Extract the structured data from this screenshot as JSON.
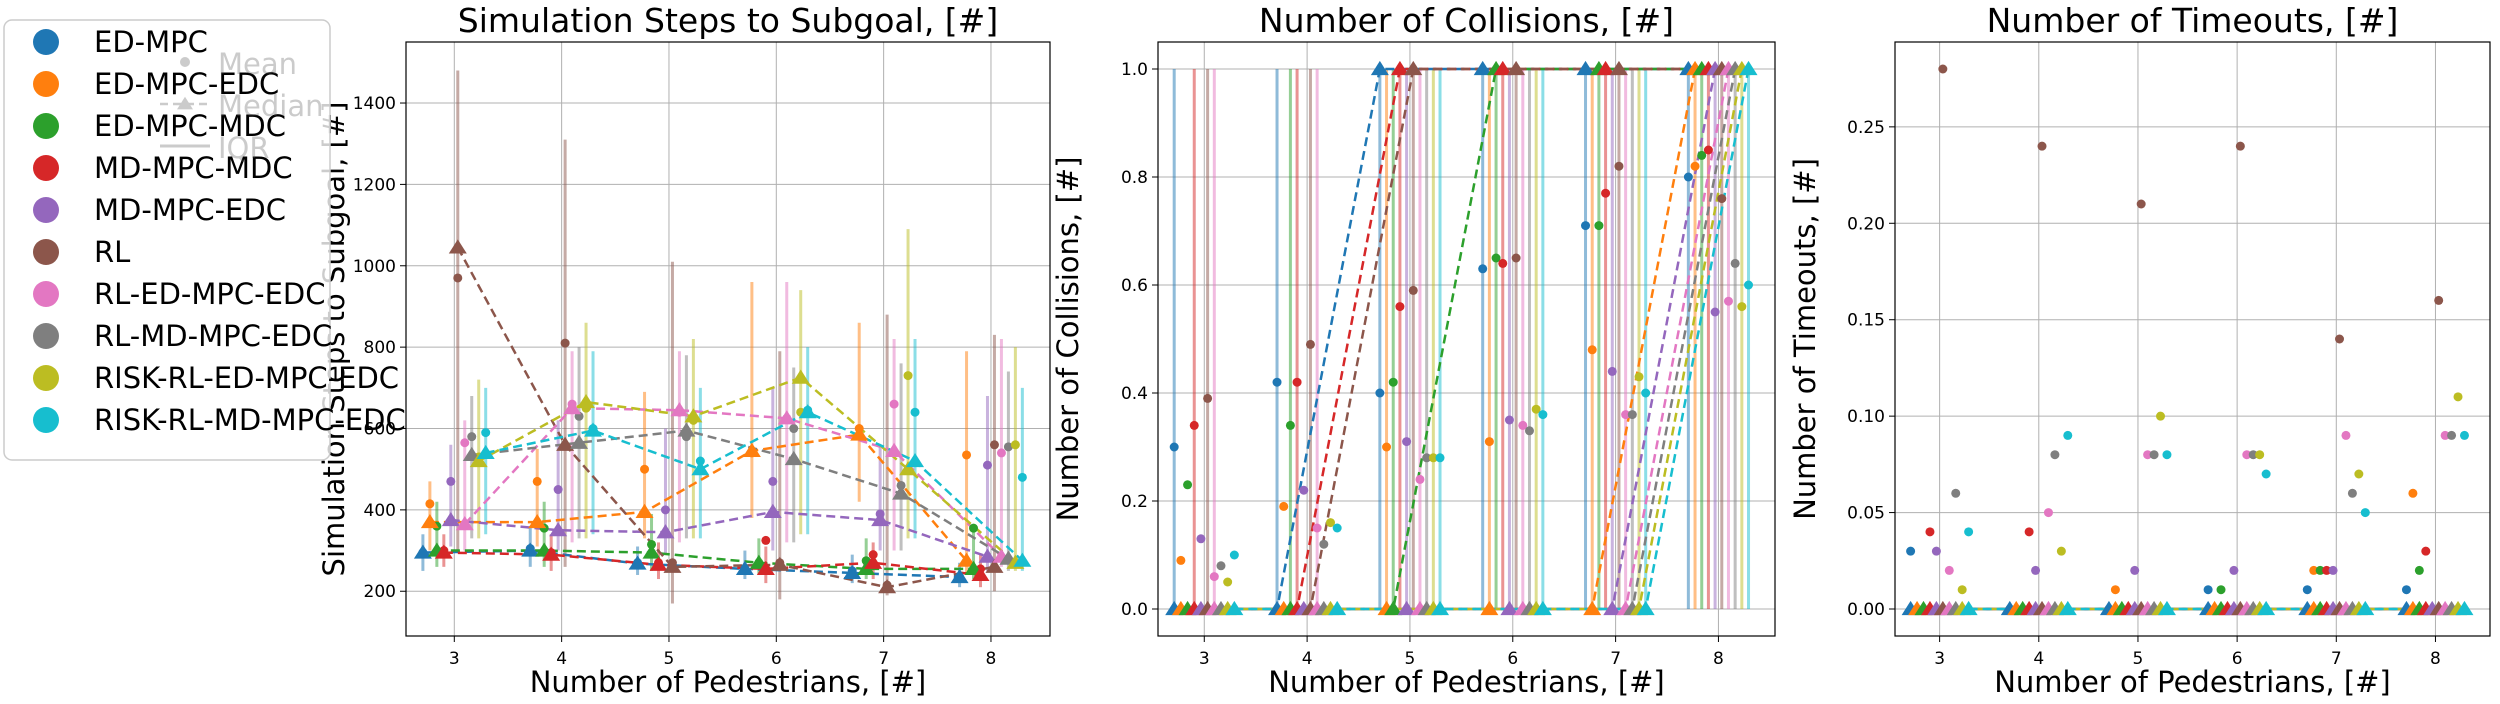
{
  "colors": {
    "ED-MPC": "#1f77b4",
    "ED-MPC-EDC": "#ff7f0e",
    "ED-MPC-MDC": "#2ca02c",
    "MD-MPC-MDC": "#d62728",
    "MD-MPC-EDC": "#9467bd",
    "RL": "#8c564b",
    "RL-ED-MPC-EDC": "#e377c2",
    "RL-MD-MPC-EDC": "#7f7f7f",
    "RISK-RL-ED-MPC-EDC": "#bcbd22",
    "RISK-RL-MD-MPC-EDC": "#17becf"
  },
  "legend": {
    "placement": "left",
    "methods": [
      "ED-MPC",
      "ED-MPC-EDC",
      "ED-MPC-MDC",
      "MD-MPC-MDC",
      "MD-MPC-EDC",
      "RL",
      "RL-ED-MPC-EDC",
      "RL-MD-MPC-EDC",
      "RISK-RL-ED-MPC-EDC",
      "RISK-RL-MD-MPC-EDC"
    ],
    "stats": [
      "Mean",
      "Median",
      "IQR"
    ]
  },
  "chart_data": [
    {
      "type": "scatter",
      "title": "Simulation Steps to Subgoal, [#]",
      "xlabel": "Number of Pedestrians, [#]",
      "ylabel": "Simulation Steps to Subgoal, [#]",
      "x": [
        3,
        4,
        5,
        6,
        7,
        8
      ],
      "xlim": [
        2.55,
        8.55
      ],
      "ylim": [
        90,
        1550
      ],
      "xticks": [
        3,
        4,
        5,
        6,
        7,
        8
      ],
      "yticks": [
        200,
        400,
        600,
        800,
        1000,
        1200,
        1400
      ],
      "grid": true,
      "series": [
        {
          "name": "ED-MPC",
          "mean": [
            295,
            305,
            270,
            255,
            250,
            235
          ],
          "median": [
            295,
            300,
            268,
            255,
            245,
            235
          ],
          "iqr_low": [
            250,
            260,
            240,
            230,
            220,
            210
          ],
          "iqr_high": [
            340,
            360,
            310,
            300,
            290,
            270
          ]
        },
        {
          "name": "ED-MPC-EDC",
          "mean": [
            415,
            470,
            500,
            540,
            600,
            535
          ],
          "median": [
            370,
            370,
            395,
            545,
            585,
            275
          ],
          "iqr_low": [
            300,
            310,
            330,
            380,
            420,
            240
          ],
          "iqr_high": [
            470,
            550,
            690,
            960,
            860,
            790
          ]
        },
        {
          "name": "ED-MPC-MDC",
          "mean": [
            360,
            355,
            315,
            270,
            275,
            355
          ],
          "median": [
            300,
            300,
            295,
            270,
            255,
            255
          ],
          "iqr_low": [
            260,
            260,
            250,
            240,
            230,
            230
          ],
          "iqr_high": [
            420,
            420,
            390,
            330,
            330,
            360
          ]
        },
        {
          "name": "MD-MPC-MDC",
          "mean": [
            300,
            295,
            270,
            325,
            290,
            255
          ],
          "median": [
            295,
            290,
            265,
            255,
            270,
            240
          ],
          "iqr_low": [
            260,
            250,
            230,
            220,
            230,
            210
          ],
          "iqr_high": [
            340,
            340,
            320,
            310,
            320,
            290
          ]
        },
        {
          "name": "MD-MPC-EDC",
          "mean": [
            470,
            450,
            400,
            470,
            390,
            510
          ],
          "median": [
            375,
            350,
            345,
            395,
            375,
            285
          ],
          "iqr_low": [
            310,
            300,
            290,
            300,
            300,
            250
          ],
          "iqr_high": [
            560,
            620,
            600,
            700,
            560,
            680
          ]
        },
        {
          "name": "RL",
          "mean": [
            970,
            810,
            270,
            270,
            215,
            560
          ],
          "median": [
            1045,
            560,
            260,
            265,
            210,
            260
          ],
          "iqr_low": [
            300,
            260,
            170,
            180,
            190,
            200
          ],
          "iqr_high": [
            1480,
            1310,
            1010,
            790,
            880,
            830
          ]
        },
        {
          "name": "RL-ED-MPC-EDC",
          "mean": [
            565,
            660,
            640,
            625,
            660,
            540
          ],
          "median": [
            365,
            650,
            645,
            625,
            545,
            285
          ],
          "iqr_low": [
            300,
            320,
            320,
            320,
            300,
            260
          ],
          "iqr_high": [
            620,
            790,
            790,
            960,
            820,
            820
          ]
        },
        {
          "name": "RL-MD-MPC-EDC",
          "mean": [
            580,
            630,
            580,
            600,
            460,
            555
          ],
          "median": [
            535,
            565,
            595,
            525,
            440,
            280
          ],
          "iqr_low": [
            330,
            330,
            330,
            320,
            300,
            250
          ],
          "iqr_high": [
            680,
            800,
            780,
            750,
            760,
            740
          ]
        },
        {
          "name": "RISK-RL-ED-MPC-EDC",
          "mean": [
            530,
            650,
            620,
            640,
            730,
            560
          ],
          "median": [
            520,
            665,
            630,
            725,
            500,
            270
          ],
          "iqr_low": [
            330,
            330,
            330,
            340,
            330,
            250
          ],
          "iqr_high": [
            720,
            860,
            820,
            940,
            1090,
            800
          ]
        },
        {
          "name": "RISK-RL-MD-MPC-EDC",
          "mean": [
            590,
            600,
            520,
            645,
            640,
            480
          ],
          "median": [
            540,
            595,
            500,
            640,
            520,
            275
          ],
          "iqr_low": [
            340,
            340,
            330,
            340,
            330,
            250
          ],
          "iqr_high": [
            700,
            790,
            700,
            800,
            820,
            700
          ]
        }
      ]
    },
    {
      "type": "scatter",
      "title": "Number of Collisions, [#]",
      "xlabel": "Number of Pedestrians, [#]",
      "ylabel": "Number of Collisions, [#]",
      "x": [
        3,
        4,
        5,
        6,
        7,
        8
      ],
      "xlim": [
        2.55,
        8.55
      ],
      "ylim": [
        -0.05,
        1.05
      ],
      "xticks": [
        3,
        4,
        5,
        6,
        7,
        8
      ],
      "yticks": [
        0.0,
        0.2,
        0.4,
        0.6,
        0.8,
        1.0
      ],
      "ytick_labels": [
        "0.0",
        "0.2",
        "0.4",
        "0.6",
        "0.8",
        "1.0"
      ],
      "grid": true,
      "series": [
        {
          "name": "ED-MPC",
          "mean": [
            0.3,
            0.42,
            0.4,
            0.63,
            0.71,
            0.8
          ],
          "median": [
            0,
            0,
            1,
            1,
            1,
            1
          ],
          "iqr_low": [
            0,
            0,
            0,
            0,
            0,
            0
          ],
          "iqr_high": [
            1,
            1,
            1,
            1,
            1,
            1
          ]
        },
        {
          "name": "ED-MPC-EDC",
          "mean": [
            0.09,
            0.19,
            0.3,
            0.31,
            0.48,
            0.82
          ],
          "median": [
            0,
            0,
            0,
            0,
            0,
            1
          ],
          "iqr_low": [
            0,
            0,
            0,
            0,
            0,
            0
          ],
          "iqr_high": [
            0,
            0,
            1,
            1,
            1,
            1
          ]
        },
        {
          "name": "ED-MPC-MDC",
          "mean": [
            0.23,
            0.34,
            0.42,
            0.65,
            0.71,
            0.84
          ],
          "median": [
            0,
            0,
            0,
            1,
            1,
            1
          ],
          "iqr_low": [
            0,
            0,
            0,
            0,
            0,
            0
          ],
          "iqr_high": [
            0,
            1,
            1,
            1,
            1,
            1
          ]
        },
        {
          "name": "MD-MPC-MDC",
          "mean": [
            0.34,
            0.42,
            0.56,
            0.64,
            0.77,
            0.85
          ],
          "median": [
            0,
            0,
            1,
            1,
            1,
            1
          ],
          "iqr_low": [
            0,
            0,
            0,
            0,
            0,
            0
          ],
          "iqr_high": [
            1,
            1,
            1,
            1,
            1,
            1
          ]
        },
        {
          "name": "MD-MPC-EDC",
          "mean": [
            0.13,
            0.22,
            0.31,
            0.35,
            0.44,
            0.55
          ],
          "median": [
            0,
            0,
            0,
            0,
            0,
            1
          ],
          "iqr_low": [
            0,
            0,
            0,
            0,
            0,
            0
          ],
          "iqr_high": [
            0,
            0,
            1,
            1,
            1,
            1
          ]
        },
        {
          "name": "RL",
          "mean": [
            0.39,
            0.49,
            0.59,
            0.65,
            0.82,
            0.76
          ],
          "median": [
            0,
            0,
            1,
            1,
            1,
            1
          ],
          "iqr_low": [
            0,
            0,
            0,
            0,
            0,
            0
          ],
          "iqr_high": [
            1,
            1,
            1,
            1,
            1,
            1
          ]
        },
        {
          "name": "RL-ED-MPC-EDC",
          "mean": [
            0.06,
            0.15,
            0.24,
            0.34,
            0.36,
            0.57
          ],
          "median": [
            0,
            0,
            0,
            0,
            0,
            1
          ],
          "iqr_low": [
            0,
            0,
            0,
            0,
            0,
            0
          ],
          "iqr_high": [
            1,
            1,
            1,
            1,
            1,
            1
          ]
        },
        {
          "name": "RL-MD-MPC-EDC",
          "mean": [
            0.08,
            0.12,
            0.28,
            0.33,
            0.36,
            0.64
          ],
          "median": [
            0,
            0,
            0,
            0,
            0,
            1
          ],
          "iqr_low": [
            0,
            0,
            0,
            0,
            0,
            0
          ],
          "iqr_high": [
            0,
            0,
            1,
            1,
            1,
            1
          ]
        },
        {
          "name": "RISK-RL-ED-MPC-EDC",
          "mean": [
            0.05,
            0.16,
            0.28,
            0.37,
            0.43,
            0.56
          ],
          "median": [
            0,
            0,
            0,
            0,
            0,
            1
          ],
          "iqr_low": [
            0,
            0,
            0,
            0,
            0,
            0
          ],
          "iqr_high": [
            0,
            0,
            1,
            1,
            1,
            1
          ]
        },
        {
          "name": "RISK-RL-MD-MPC-EDC",
          "mean": [
            0.1,
            0.15,
            0.28,
            0.36,
            0.4,
            0.6
          ],
          "median": [
            0,
            0,
            0,
            0,
            0,
            1
          ],
          "iqr_low": [
            0,
            0,
            0,
            0,
            0,
            0
          ],
          "iqr_high": [
            0,
            0,
            1,
            1,
            1,
            1
          ]
        }
      ]
    },
    {
      "type": "scatter",
      "title": "Number of Timeouts, [#]",
      "xlabel": "Number of Pedestrians, [#]",
      "ylabel": "Number of Timeouts, [#]",
      "x": [
        3,
        4,
        5,
        6,
        7,
        8
      ],
      "xlim": [
        2.55,
        8.55
      ],
      "ylim": [
        -0.014,
        0.294
      ],
      "xticks": [
        3,
        4,
        5,
        6,
        7,
        8
      ],
      "yticks": [
        0.0,
        0.05,
        0.1,
        0.15,
        0.2,
        0.25
      ],
      "ytick_labels": [
        "0.00",
        "0.05",
        "0.10",
        "0.15",
        "0.20",
        "0.25"
      ],
      "grid": true,
      "series": [
        {
          "name": "ED-MPC",
          "mean": [
            0.03,
            0.0,
            0.0,
            0.01,
            0.01,
            0.01
          ],
          "median": [
            0,
            0,
            0,
            0,
            0,
            0
          ]
        },
        {
          "name": "ED-MPC-EDC",
          "mean": [
            0.0,
            0.0,
            0.01,
            0.0,
            0.02,
            0.06
          ],
          "median": [
            0,
            0,
            0,
            0,
            0,
            0
          ]
        },
        {
          "name": "ED-MPC-MDC",
          "mean": [
            0.0,
            0.0,
            0.0,
            0.01,
            0.02,
            0.02
          ],
          "median": [
            0,
            0,
            0,
            0,
            0,
            0
          ]
        },
        {
          "name": "MD-MPC-MDC",
          "mean": [
            0.04,
            0.04,
            0.0,
            0.0,
            0.02,
            0.03
          ],
          "median": [
            0,
            0,
            0,
            0,
            0,
            0
          ]
        },
        {
          "name": "MD-MPC-EDC",
          "mean": [
            0.03,
            0.02,
            0.02,
            0.02,
            0.02,
            0.0
          ],
          "median": [
            0,
            0,
            0,
            0,
            0,
            0
          ]
        },
        {
          "name": "RL",
          "mean": [
            0.28,
            0.24,
            0.21,
            0.24,
            0.14,
            0.16
          ],
          "median": [
            0,
            0,
            0,
            0,
            0,
            0
          ]
        },
        {
          "name": "RL-ED-MPC-EDC",
          "mean": [
            0.02,
            0.05,
            0.08,
            0.08,
            0.09,
            0.09
          ],
          "median": [
            0,
            0,
            0,
            0,
            0,
            0
          ]
        },
        {
          "name": "RL-MD-MPC-EDC",
          "mean": [
            0.06,
            0.08,
            0.08,
            0.08,
            0.06,
            0.09
          ],
          "median": [
            0,
            0,
            0,
            0,
            0,
            0
          ]
        },
        {
          "name": "RISK-RL-ED-MPC-EDC",
          "mean": [
            0.01,
            0.03,
            0.1,
            0.08,
            0.07,
            0.11
          ],
          "median": [
            0,
            0,
            0,
            0,
            0,
            0
          ]
        },
        {
          "name": "RISK-RL-MD-MPC-EDC",
          "mean": [
            0.04,
            0.09,
            0.08,
            0.07,
            0.05,
            0.09
          ],
          "median": [
            0,
            0,
            0,
            0,
            0,
            0
          ]
        }
      ]
    }
  ]
}
